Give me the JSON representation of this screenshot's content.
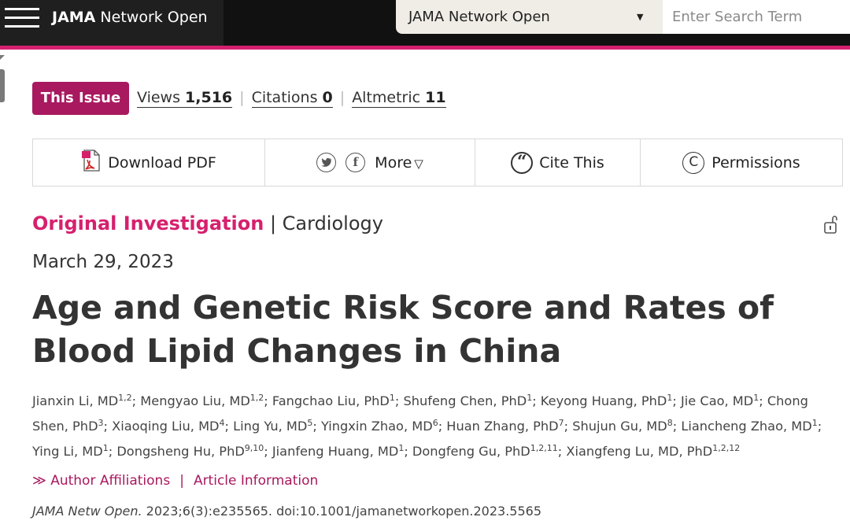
{
  "header": {
    "brand_bold": "JAMA",
    "brand_rest": " Network Open",
    "journal_select": "JAMA Network Open",
    "search_placeholder": "Enter Search Term"
  },
  "metrics": {
    "this_issue": "This Issue",
    "views_label": "Views",
    "views_value": "1,516",
    "citations_label": "Citations",
    "citations_value": "0",
    "altmetric_label": "Altmetric",
    "altmetric_value": "11"
  },
  "tools": {
    "download_pdf": "Download PDF",
    "more": "More",
    "cite": "Cite This",
    "permissions": "Permissions"
  },
  "article": {
    "type": "Original Investigation",
    "separator": " | ",
    "subject": "Cardiology",
    "date": "March 29, 2023",
    "title": "Age and Genetic Risk Score and Rates of Blood Lipid Changes in China",
    "authors": [
      {
        "name": "Jianxin Li, MD",
        "aff": "1,2"
      },
      {
        "name": "Mengyao Liu, MD",
        "aff": "1,2"
      },
      {
        "name": "Fangchao Liu, PhD",
        "aff": "1"
      },
      {
        "name": "Shufeng Chen, PhD",
        "aff": "1"
      },
      {
        "name": "Keyong Huang, PhD",
        "aff": "1"
      },
      {
        "name": "Jie Cao, MD",
        "aff": "1"
      },
      {
        "name": "Chong Shen, PhD",
        "aff": "3"
      },
      {
        "name": "Xiaoqing Liu, MD",
        "aff": "4"
      },
      {
        "name": "Ling Yu, MD",
        "aff": "5"
      },
      {
        "name": "Yingxin Zhao, MD",
        "aff": "6"
      },
      {
        "name": "Huan Zhang, PhD",
        "aff": "7"
      },
      {
        "name": "Shujun Gu, MD",
        "aff": "8"
      },
      {
        "name": "Liancheng Zhao, MD",
        "aff": "1"
      },
      {
        "name": "Ying Li, MD",
        "aff": "1"
      },
      {
        "name": "Dongsheng Hu, PhD",
        "aff": "9,10"
      },
      {
        "name": "Jianfeng Huang, MD",
        "aff": "1"
      },
      {
        "name": "Dongfeng Gu, PhD",
        "aff": "1,2,11"
      },
      {
        "name": "Xiangfeng Lu, MD, PhD",
        "aff": "1,2,12"
      }
    ],
    "links": {
      "arrow": "≫",
      "affiliations": "Author Affiliations",
      "separator": "|",
      "info": "Article Information"
    },
    "citation_journal": "JAMA Netw Open.",
    "citation_rest": " 2023;6(3):e235565. doi:10.1001/jamanetworkopen.2023.5565"
  }
}
